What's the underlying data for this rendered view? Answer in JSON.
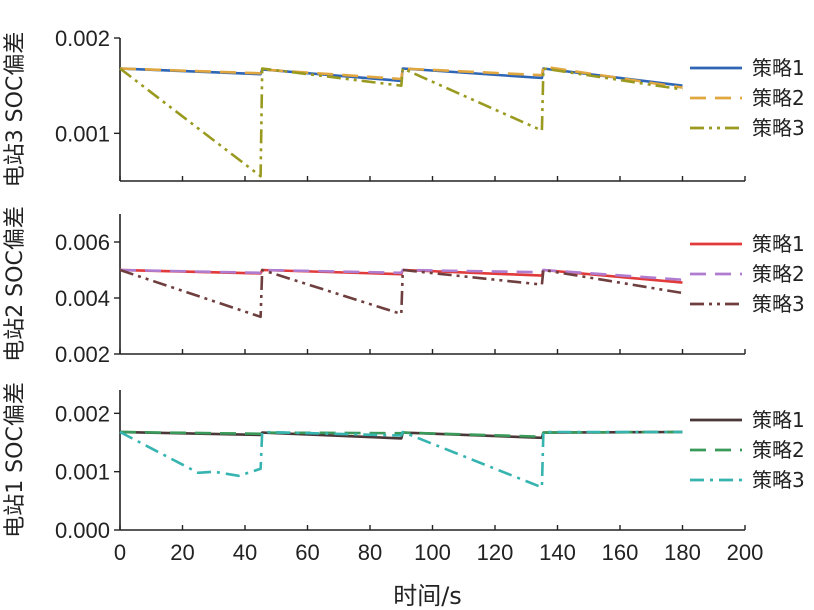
{
  "chart_data": [
    {
      "type": "line",
      "ylabel": "电站3 SOC偏差",
      "xlim": [
        0,
        200
      ],
      "ylim": [
        0.0005,
        0.002
      ],
      "yticks": [
        {
          "value": 0.001,
          "label": "0.001"
        },
        {
          "value": 0.002,
          "label": "0.002"
        }
      ],
      "grid": false,
      "legend": "right",
      "series": [
        {
          "name": "策略1",
          "color": "#2f65b5",
          "dash": "solid",
          "x": [
            0,
            45,
            45.5,
            90,
            90.5,
            135,
            135.5,
            180
          ],
          "y": [
            0.00168,
            0.00162,
            0.00167,
            0.00155,
            0.00168,
            0.00158,
            0.00168,
            0.0015
          ]
        },
        {
          "name": "策略2",
          "color": "#e0a640",
          "dash": "dashed",
          "x": [
            0,
            45,
            45.5,
            90,
            90.5,
            135,
            135.5,
            180
          ],
          "y": [
            0.00168,
            0.00163,
            0.00167,
            0.00157,
            0.00168,
            0.00161,
            0.0017,
            0.00148
          ]
        },
        {
          "name": "策略3",
          "color": "#9a9a20",
          "dash": "dashdotdot",
          "x": [
            0,
            45,
            45.5,
            90,
            90.5,
            135,
            135.5,
            180
          ],
          "y": [
            0.00168,
            0.00055,
            0.00168,
            0.0015,
            0.00168,
            0.00103,
            0.00168,
            0.00146
          ]
        }
      ]
    },
    {
      "type": "line",
      "ylabel": "电站2 SOC偏差",
      "xlim": [
        0,
        200
      ],
      "ylim": [
        0.002,
        0.007
      ],
      "yticks": [
        {
          "value": 0.002,
          "label": "0.002"
        },
        {
          "value": 0.004,
          "label": "0.004"
        },
        {
          "value": 0.006,
          "label": "0.006"
        }
      ],
      "grid": false,
      "legend": "right",
      "series": [
        {
          "name": "策略1",
          "color": "#e03a3a",
          "dash": "solid",
          "x": [
            0,
            45,
            45.5,
            90,
            90.5,
            135,
            135.5,
            180
          ],
          "y": [
            0.005,
            0.00488,
            0.005,
            0.00485,
            0.005,
            0.0048,
            0.005,
            0.00455
          ]
        },
        {
          "name": "策略2",
          "color": "#b07cd0",
          "dash": "dashed",
          "x": [
            0,
            45,
            45.5,
            90,
            90.5,
            135,
            135.5,
            180
          ],
          "y": [
            0.005,
            0.0049,
            0.005,
            0.0049,
            0.005,
            0.00492,
            0.005,
            0.00465
          ]
        },
        {
          "name": "策略3",
          "color": "#6f3f3f",
          "dash": "dashdotdot",
          "x": [
            0,
            45,
            45.5,
            90,
            90.5,
            135,
            135.5,
            180
          ],
          "y": [
            0.005,
            0.00333,
            0.005,
            0.00343,
            0.005,
            0.00448,
            0.005,
            0.00418
          ]
        }
      ]
    },
    {
      "type": "line",
      "ylabel": "电站1 SOC偏差",
      "xlabel": "时间/s",
      "xlim": [
        0,
        200
      ],
      "ylim": [
        0.0,
        0.0024
      ],
      "yticks": [
        {
          "value": 0.0,
          "label": "0.000"
        },
        {
          "value": 0.001,
          "label": "0.001"
        },
        {
          "value": 0.002,
          "label": "0.002"
        }
      ],
      "xticks": [
        0,
        20,
        40,
        60,
        80,
        100,
        120,
        140,
        160,
        180,
        200
      ],
      "grid": false,
      "legend": "right",
      "series": [
        {
          "name": "策略1",
          "color": "#4a3838",
          "dash": "solid",
          "x": [
            0,
            45,
            45.5,
            90,
            90.5,
            135,
            135.5,
            180
          ],
          "y": [
            0.00168,
            0.00163,
            0.00167,
            0.00157,
            0.00167,
            0.00158,
            0.00167,
            0.00168
          ]
        },
        {
          "name": "策略2",
          "color": "#3a9a5a",
          "dash": "dashed",
          "x": [
            0,
            45,
            45.5,
            90,
            90.5,
            135,
            135.5,
            180
          ],
          "y": [
            0.00168,
            0.00165,
            0.00167,
            0.00166,
            0.00167,
            0.0016,
            0.00167,
            0.00168
          ]
        },
        {
          "name": "策略3",
          "color": "#36b4b0",
          "dash": "dashdot",
          "x": [
            0,
            25,
            30,
            38,
            45,
            45.5,
            90,
            90.5,
            135,
            135.5,
            180
          ],
          "y": [
            0.00168,
            0.00098,
            0.001,
            0.00093,
            0.00105,
            0.00168,
            0.00162,
            0.00168,
            0.00073,
            0.00168,
            0.00168
          ]
        }
      ]
    }
  ]
}
